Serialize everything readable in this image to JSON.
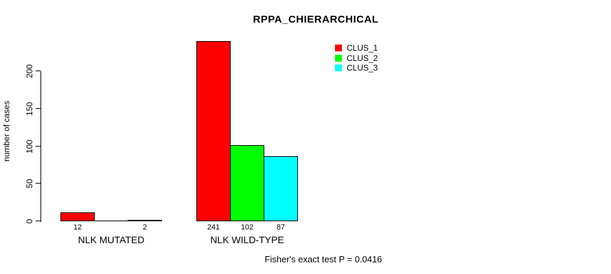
{
  "chart_data": {
    "type": "bar",
    "title": "RPPA_CHIERARCHICAL",
    "ylabel": "number of cases",
    "xlabel": "",
    "categories": [
      "NLK MUTATED",
      "NLK WILD-TYPE"
    ],
    "series": [
      {
        "name": "CLUS_1",
        "color": "#ff0000",
        "values": [
          12,
          241
        ]
      },
      {
        "name": "CLUS_2",
        "color": "#00ff00",
        "values": [
          0,
          102
        ]
      },
      {
        "name": "CLUS_3",
        "color": "#00ffff",
        "values": [
          2,
          87
        ]
      }
    ],
    "bar_value_labels": [
      [
        "12",
        "",
        "2"
      ],
      [
        "241",
        "102",
        "87"
      ]
    ],
    "yticks": [
      0,
      50,
      100,
      150,
      200
    ],
    "ylim": [
      0,
      200
    ],
    "grid": false,
    "legend": {
      "position": "top-right",
      "items": [
        {
          "label": "CLUS_1",
          "color": "#ff0000"
        },
        {
          "label": "CLUS_2",
          "color": "#00ff00"
        },
        {
          "label": "CLUS_3",
          "color": "#00ffff"
        }
      ]
    },
    "annotation": "Fisher's exact test P = 0.0416"
  },
  "colors": {
    "axis": "#000000",
    "text": "#000000",
    "background": "#ffffff"
  }
}
